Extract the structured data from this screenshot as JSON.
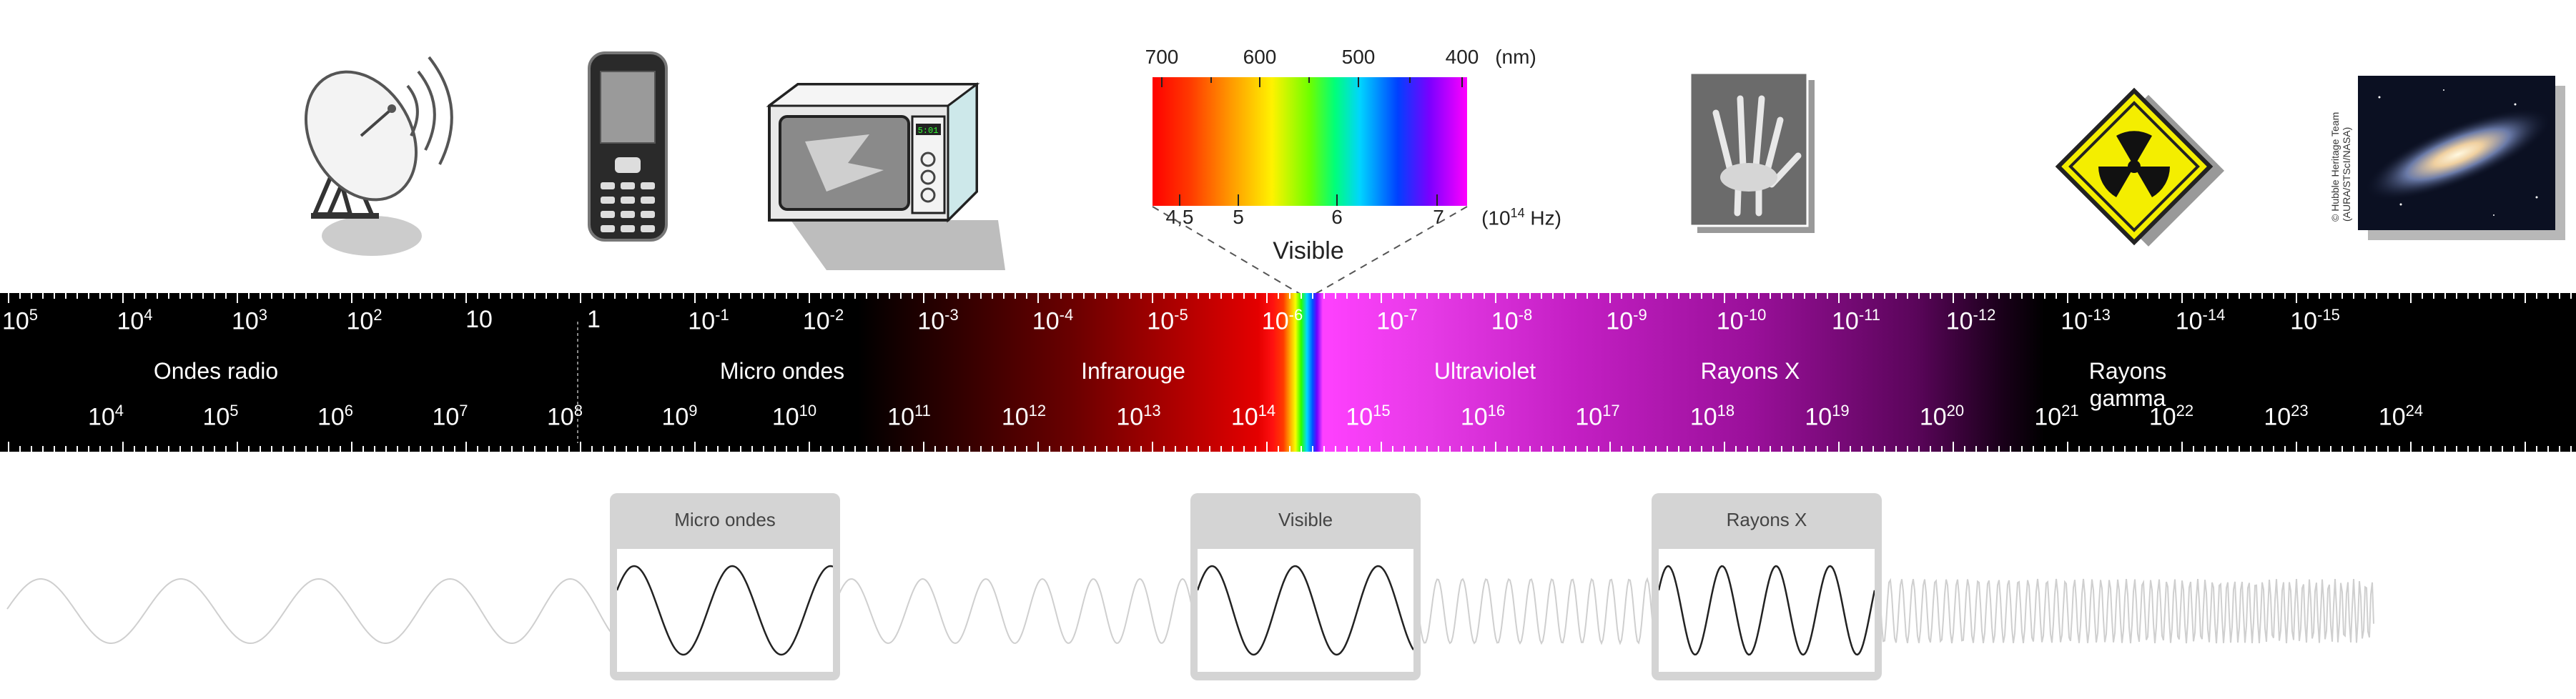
{
  "wavelength_labels": [
    {
      "base": "10",
      "exp": "5"
    },
    {
      "base": "10",
      "exp": "4"
    },
    {
      "base": "10",
      "exp": "3"
    },
    {
      "base": "10",
      "exp": "2"
    },
    {
      "base": "10",
      "exp": ""
    },
    {
      "base": "1",
      "exp": ""
    },
    {
      "base": "10",
      "exp": "-1"
    },
    {
      "base": "10",
      "exp": "-2"
    },
    {
      "base": "10",
      "exp": "-3"
    },
    {
      "base": "10",
      "exp": "-4"
    },
    {
      "base": "10",
      "exp": "-5"
    },
    {
      "base": "10",
      "exp": "-6"
    },
    {
      "base": "10",
      "exp": "-7"
    },
    {
      "base": "10",
      "exp": "-8"
    },
    {
      "base": "10",
      "exp": "-9"
    },
    {
      "base": "10",
      "exp": "-10"
    },
    {
      "base": "10",
      "exp": "-11"
    },
    {
      "base": "10",
      "exp": "-12"
    },
    {
      "base": "10",
      "exp": "-13"
    },
    {
      "base": "10",
      "exp": "-14"
    },
    {
      "base": "10",
      "exp": "-15"
    }
  ],
  "frequency_labels": [
    {
      "base": "10",
      "exp": "4"
    },
    {
      "base": "10",
      "exp": "5"
    },
    {
      "base": "10",
      "exp": "6"
    },
    {
      "base": "10",
      "exp": "7"
    },
    {
      "base": "10",
      "exp": "8"
    },
    {
      "base": "10",
      "exp": "9"
    },
    {
      "base": "10",
      "exp": "10"
    },
    {
      "base": "10",
      "exp": "11"
    },
    {
      "base": "10",
      "exp": "12"
    },
    {
      "base": "10",
      "exp": "13"
    },
    {
      "base": "10",
      "exp": "14"
    },
    {
      "base": "10",
      "exp": "15"
    },
    {
      "base": "10",
      "exp": "16"
    },
    {
      "base": "10",
      "exp": "17"
    },
    {
      "base": "10",
      "exp": "18"
    },
    {
      "base": "10",
      "exp": "19"
    },
    {
      "base": "10",
      "exp": "20"
    },
    {
      "base": "10",
      "exp": "21"
    },
    {
      "base": "10",
      "exp": "22"
    },
    {
      "base": "10",
      "exp": "23"
    },
    {
      "base": "10",
      "exp": "24"
    }
  ],
  "regions": {
    "radio": "Ondes radio",
    "microwave": "Micro ondes",
    "infrared": "Infrarouge",
    "ultraviolet": "Ultraviolet",
    "xray": "Rayons X",
    "gamma": "Rayons gamma"
  },
  "visible_spectrum": {
    "nm_labels": [
      "700",
      "600",
      "500",
      "400"
    ],
    "nm_unit": "(nm)",
    "hz_labels": [
      "4,5",
      "5",
      "6",
      "7"
    ],
    "hz_unit_base": "(10",
    "hz_unit_exp": "14",
    "hz_unit_tail": " Hz)",
    "caption": "Visible"
  },
  "panels": {
    "microwave": "Micro ondes",
    "visible": "Visible",
    "xray": "Rayons X"
  },
  "credit": {
    "line1": "© Hubble Heritage Team",
    "line2": "(AURA/STScI/NASA)"
  }
}
